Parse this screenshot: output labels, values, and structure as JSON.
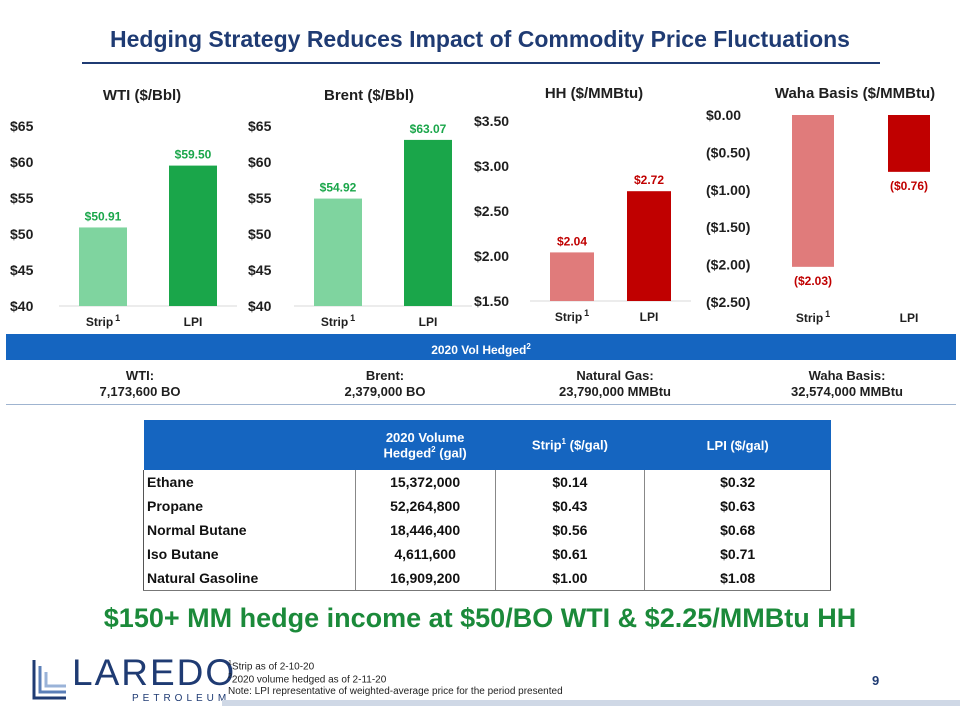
{
  "page_title": "Hedging Strategy Reduces Impact of Commodity Price Fluctuations",
  "chart_data": [
    {
      "type": "bar",
      "title": "WTI ($/Bbl)",
      "categories": [
        "Strip",
        "LPI"
      ],
      "category_superscripts": [
        "1",
        ""
      ],
      "values": [
        50.91,
        59.5
      ],
      "value_labels": [
        "$50.91",
        "$59.50"
      ],
      "colors": [
        "#7fd49f",
        "#1aa64a"
      ],
      "label_colors": [
        "#1aa64a",
        "#1aa64a"
      ],
      "ylim": [
        40,
        65
      ],
      "yticks": [
        65,
        60,
        55,
        50,
        45,
        40
      ],
      "ytick_labels": [
        "$65",
        "$60",
        "$55",
        "$50",
        "$45",
        "$40"
      ]
    },
    {
      "type": "bar",
      "title": "Brent ($/Bbl)",
      "categories": [
        "Strip",
        "LPI"
      ],
      "category_superscripts": [
        "1",
        ""
      ],
      "values": [
        54.92,
        63.07
      ],
      "value_labels": [
        "$54.92",
        "$63.07"
      ],
      "colors": [
        "#7fd49f",
        "#1aa64a"
      ],
      "label_colors": [
        "#1aa64a",
        "#1aa64a"
      ],
      "ylim": [
        40,
        65
      ],
      "yticks": [
        65,
        60,
        55,
        50,
        45,
        40
      ],
      "ytick_labels": [
        "$65",
        "$60",
        "$55",
        "$50",
        "$45",
        "$40"
      ]
    },
    {
      "type": "bar",
      "title": "HH ($/MMBtu)",
      "categories": [
        "Strip",
        "LPI"
      ],
      "category_superscripts": [
        "1",
        ""
      ],
      "values": [
        2.04,
        2.72
      ],
      "value_labels": [
        "$2.04",
        "$2.72"
      ],
      "colors": [
        "#e07b7b",
        "#c00000"
      ],
      "label_colors": [
        "#c00000",
        "#c00000"
      ],
      "ylim": [
        1.5,
        3.5
      ],
      "yticks": [
        3.5,
        3.0,
        2.5,
        2.0,
        1.5
      ],
      "ytick_labels": [
        "$3.50",
        "$3.00",
        "$2.50",
        "$2.00",
        "$1.50"
      ]
    },
    {
      "type": "bar",
      "title": "Waha Basis ($/MMBtu)",
      "categories": [
        "Strip",
        "LPI"
      ],
      "category_superscripts": [
        "1",
        ""
      ],
      "values": [
        -2.03,
        -0.76
      ],
      "value_labels": [
        "($2.03)",
        "($0.76)"
      ],
      "colors": [
        "#e07b7b",
        "#c00000"
      ],
      "label_colors": [
        "#c00000",
        "#c00000"
      ],
      "ylim": [
        -2.5,
        0
      ],
      "yticks": [
        0,
        -0.5,
        -1.0,
        -1.5,
        -2.0,
        -2.5
      ],
      "ytick_labels": [
        "$0.00",
        "($0.50)",
        "($1.00)",
        "($1.50)",
        "($2.00)",
        "($2.50)"
      ]
    }
  ],
  "volume_band": {
    "label": "2020 Vol Hedged",
    "sup": "2"
  },
  "volumes": [
    {
      "name": "WTI:",
      "value": "7,173,600 BO"
    },
    {
      "name": "Brent:",
      "value": "2,379,000 BO"
    },
    {
      "name": "Natural Gas:",
      "value": "23,790,000 MMBtu"
    },
    {
      "name": "Waha Basis:",
      "value": "32,574,000 MMBtu"
    }
  ],
  "ngl_table": {
    "headers": {
      "volume_line1": "2020 Volume",
      "volume_line2": "Hedged",
      "volume_sup": "2",
      "volume_unit": " (gal)",
      "strip": "Strip",
      "strip_sup": "1",
      "strip_unit": " ($/gal)",
      "lpi": "LPI ($/gal)"
    },
    "rows": [
      {
        "product": "Ethane",
        "volume": "15,372,000",
        "strip": "$0.14",
        "lpi": "$0.32"
      },
      {
        "product": "Propane",
        "volume": "52,264,800",
        "strip": "$0.43",
        "lpi": "$0.63"
      },
      {
        "product": "Normal Butane",
        "volume": "18,446,400",
        "strip": "$0.56",
        "lpi": "$0.68"
      },
      {
        "product": "Iso Butane",
        "volume": "4,611,600",
        "strip": "$0.61",
        "lpi": "$0.71"
      },
      {
        "product": "Natural Gasoline",
        "volume": "16,909,200",
        "strip": "$1.00",
        "lpi": "$1.08"
      }
    ]
  },
  "tagline": "$150+ MM hedge income at $50/BO WTI & $2.25/MMBtu HH",
  "logo": {
    "word": "LAREDO",
    "sub": "PETROLEUM"
  },
  "footnotes": {
    "note1_sup": "1",
    "note1": "Strip as of 2-10-20",
    "note2_sup": "2",
    "note2": "2020 volume hedged as of 2-11-20",
    "note3": "Note: LPI representative of weighted-average price for the period presented"
  },
  "page_number": "9",
  "colors": {
    "navy": "#1f3b73",
    "blue": "#1565c0",
    "green": "#1aa64a",
    "red": "#c00000"
  }
}
